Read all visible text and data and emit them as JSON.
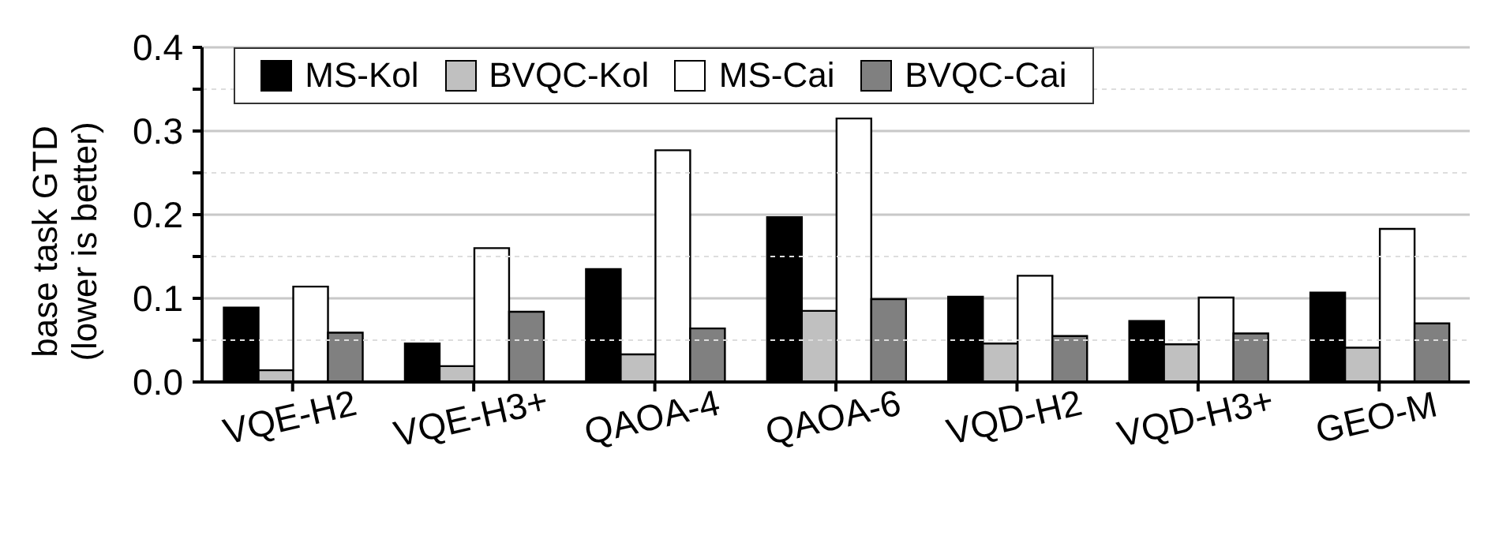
{
  "chart_data": {
    "type": "bar",
    "ylabel": "base task GTD (lower is better)",
    "categories": [
      "VQE-H2",
      "VQE-H3+",
      "QAOA-4",
      "QAOA-6",
      "VQD-H2",
      "VQD-H3+",
      "GEO-M"
    ],
    "series": [
      {
        "name": "MS-Kol",
        "color": "#000000",
        "values": [
          0.089,
          0.046,
          0.135,
          0.197,
          0.102,
          0.073,
          0.107
        ]
      },
      {
        "name": "BVQC-Kol",
        "color": "#c0c0c0",
        "values": [
          0.014,
          0.019,
          0.033,
          0.085,
          0.046,
          0.045,
          0.041
        ]
      },
      {
        "name": "MS-Cai",
        "color": "#ffffff",
        "values": [
          0.114,
          0.16,
          0.277,
          0.315,
          0.127,
          0.101,
          0.183
        ]
      },
      {
        "name": "BVQC-Cai",
        "color": "#808080",
        "values": [
          0.059,
          0.084,
          0.064,
          0.099,
          0.055,
          0.058,
          0.07
        ]
      }
    ],
    "ylim": [
      0,
      0.4
    ],
    "yticks": [
      {
        "value": 0,
        "label": "0.0"
      },
      {
        "value": 0.05,
        "label": null
      },
      {
        "value": 0.1,
        "label": "0.1"
      },
      {
        "value": 0.15,
        "label": null
      },
      {
        "value": 0.2,
        "label": "0.2"
      },
      {
        "value": 0.25,
        "label": null
      },
      {
        "value": 0.3,
        "label": "0.3"
      },
      {
        "value": 0.35,
        "label": null
      },
      {
        "value": 0.4,
        "label": "0.4"
      }
    ],
    "grid": "y",
    "legend": "top"
  }
}
